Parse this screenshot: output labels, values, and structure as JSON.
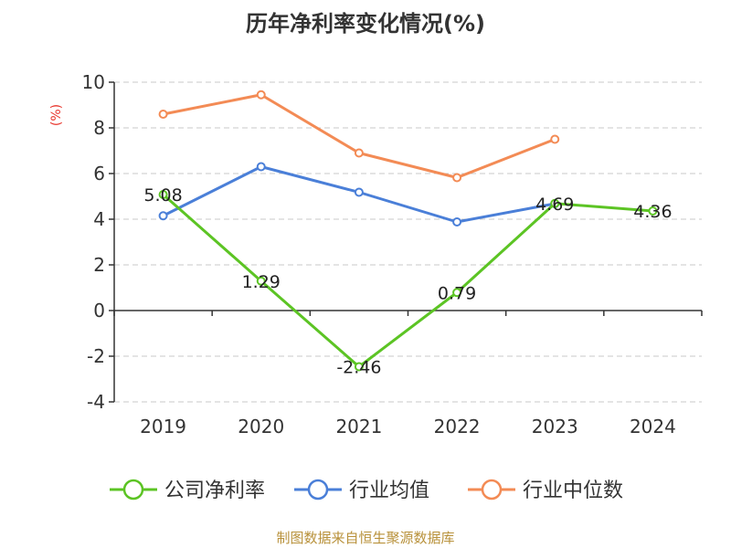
{
  "chart_data": {
    "type": "line",
    "title": "历年净利率变化情况(%)",
    "ylabel": "(%)",
    "categories": [
      "2019",
      "2020",
      "2021",
      "2022",
      "2023",
      "2024"
    ],
    "ylim": [
      -4,
      10
    ],
    "yticks": [
      "10",
      "8",
      "6",
      "4",
      "2",
      "0",
      "-2",
      "-4"
    ],
    "grid": true,
    "legend_position": "bottom",
    "series": [
      {
        "name": "公司净利率",
        "color": "#5cc424",
        "values": [
          5.08,
          1.29,
          -2.46,
          0.79,
          4.69,
          4.36
        ],
        "labels": [
          "5.08",
          "1.29",
          "-2.46",
          "0.79",
          "4.69",
          "4.36"
        ]
      },
      {
        "name": "行业均值",
        "color": "#4a7fd8",
        "values": [
          4.15,
          6.3,
          5.18,
          3.88,
          4.68,
          null
        ]
      },
      {
        "name": "行业中位数",
        "color": "#f38b55",
        "values": [
          8.6,
          9.45,
          6.9,
          5.82,
          7.5,
          null
        ]
      }
    ]
  },
  "footer": {
    "source": "制图数据来自恒生聚源数据库"
  }
}
